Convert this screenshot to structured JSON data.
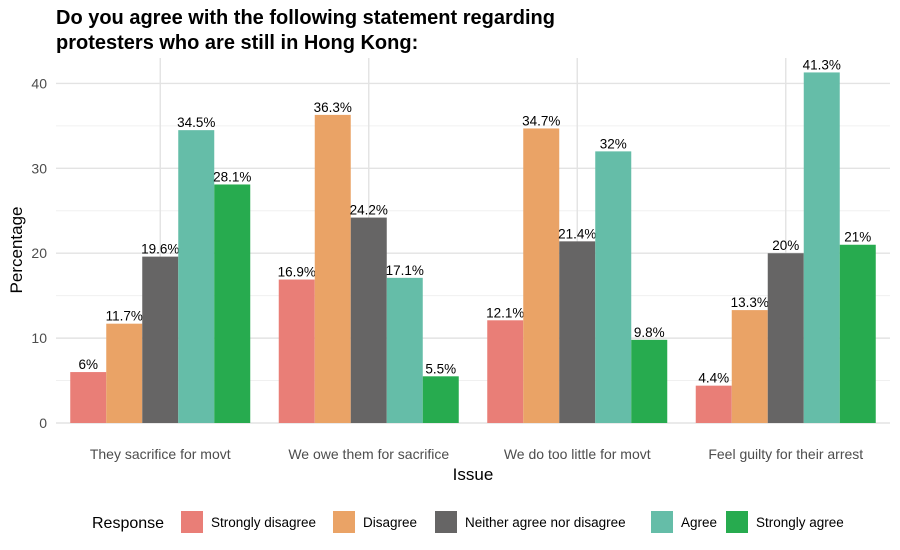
{
  "chart_data": {
    "type": "bar",
    "title_line1": "Do you agree with the following statement regarding",
    "title_line2": "protesters who are still in Hong Kong:",
    "xlabel": "Issue",
    "ylabel": "Percentage",
    "ylim": [
      0,
      43
    ],
    "yticks": [
      0,
      10,
      20,
      30,
      40
    ],
    "grid": true,
    "legend_position": "bottom",
    "legend_title": "Response",
    "categories": [
      "They sacrifice for movt",
      "We owe them for sacrifice",
      "We do too little for movt",
      "Feel guilty for their arrest"
    ],
    "series": [
      {
        "name": "Strongly disagree",
        "color": "#E97E77",
        "values": [
          6,
          16.9,
          12.1,
          4.4
        ],
        "labels": [
          "6%",
          "16.9%",
          "12.1%",
          "4.4%"
        ]
      },
      {
        "name": "Disagree",
        "color": "#EAA366",
        "values": [
          11.7,
          36.3,
          34.7,
          13.3
        ],
        "labels": [
          "11.7%",
          "36.3%",
          "34.7%",
          "13.3%"
        ]
      },
      {
        "name": "Neither agree nor disagree",
        "color": "#666565",
        "values": [
          19.6,
          24.2,
          21.4,
          20
        ],
        "labels": [
          "19.6%",
          "24.2%",
          "21.4%",
          "20%"
        ]
      },
      {
        "name": "Agree",
        "color": "#65BDA8",
        "values": [
          34.5,
          17.1,
          32,
          41.3
        ],
        "labels": [
          "34.5%",
          "17.1%",
          "32%",
          "41.3%"
        ]
      },
      {
        "name": "Strongly agree",
        "color": "#27AB4F",
        "values": [
          28.1,
          5.5,
          9.8,
          21
        ],
        "labels": [
          "28.1%",
          "5.5%",
          "9.8%",
          "21%"
        ]
      }
    ]
  }
}
